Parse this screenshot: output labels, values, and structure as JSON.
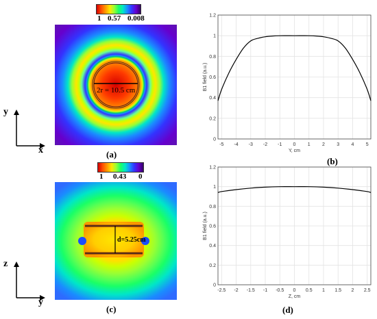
{
  "colors": {
    "spectrum": [
      "#d40000",
      "#ff4d00",
      "#ff9900",
      "#ffe600",
      "#99ff33",
      "#1aff66",
      "#00e6c8",
      "#1a8cff",
      "#3333ff",
      "#6600cc",
      "#330066"
    ]
  },
  "panel_a": {
    "label": "(a)",
    "colorbar_labels": [
      "1",
      "0.57",
      "0.008"
    ],
    "annotation": "2r = 10.5 cm",
    "axes": {
      "vertical": "y",
      "horizontal": "x"
    }
  },
  "panel_c": {
    "label": "(c)",
    "colorbar_labels": [
      "1",
      "0.43",
      "0"
    ],
    "annotation": "d=5.25cm",
    "axes": {
      "vertical": "z",
      "horizontal": "y"
    }
  },
  "chart_data": [
    {
      "id": "b",
      "panel_label": "(b)",
      "type": "line",
      "xlabel": "Y, cm",
      "ylabel": "B1 field (a.u.)",
      "xlim": [
        -5.25,
        5.25
      ],
      "ylim": [
        0,
        1.2
      ],
      "xticks": [
        -5,
        -4,
        -3,
        -2,
        -1,
        0,
        1,
        2,
        3,
        4,
        5
      ],
      "yticks": [
        0,
        0.2,
        0.4,
        0.6,
        0.8,
        1,
        1.2
      ],
      "xticklabels": [
        "-5",
        "-4",
        "-3",
        "-2",
        "-1",
        "0",
        "1",
        "2",
        "3",
        "4",
        "5"
      ],
      "yticklabels": [
        "0",
        "0.2",
        "0.4",
        "0.6",
        "0.8",
        "1",
        "1.2"
      ],
      "grid": true,
      "x": [
        -5.25,
        -5,
        -4.5,
        -4,
        -3.5,
        -3,
        -2.5,
        -2,
        -1.5,
        -1,
        0,
        1,
        1.5,
        2,
        2.5,
        3,
        3.5,
        4,
        4.5,
        5,
        5.25
      ],
      "y": [
        0.37,
        0.48,
        0.64,
        0.77,
        0.88,
        0.95,
        0.975,
        0.99,
        0.997,
        1.0,
        1.0,
        1.0,
        0.997,
        0.99,
        0.975,
        0.95,
        0.88,
        0.77,
        0.64,
        0.48,
        0.37
      ]
    },
    {
      "id": "d",
      "panel_label": "(d)",
      "type": "line",
      "xlabel": "Z, cm",
      "ylabel": "B1 field (a.u.)",
      "xlim": [
        -2.625,
        2.625
      ],
      "ylim": [
        0,
        1.2
      ],
      "xticks": [
        -2.5,
        -2,
        -1.5,
        -1,
        -0.5,
        0,
        0.5,
        1,
        1.5,
        2,
        2.5
      ],
      "yticks": [
        0,
        0.2,
        0.4,
        0.6,
        0.8,
        1,
        1.2
      ],
      "xticklabels": [
        "-2.5",
        "-2",
        "-1.5",
        "-1",
        "-0.5",
        "0",
        "0.5",
        "1",
        "1.5",
        "2",
        "2.5"
      ],
      "yticklabels": [
        "0",
        "0.2",
        "0.4",
        "0.6",
        "0.8",
        "1",
        "1.2"
      ],
      "grid": true,
      "x": [
        -2.625,
        -2.5,
        -2,
        -1.5,
        -1,
        -0.5,
        0,
        0.5,
        1,
        1.5,
        2,
        2.5,
        2.625
      ],
      "y": [
        0.94,
        0.95,
        0.97,
        0.985,
        0.995,
        1.0,
        1.0,
        1.0,
        0.995,
        0.985,
        0.97,
        0.95,
        0.94
      ]
    }
  ]
}
